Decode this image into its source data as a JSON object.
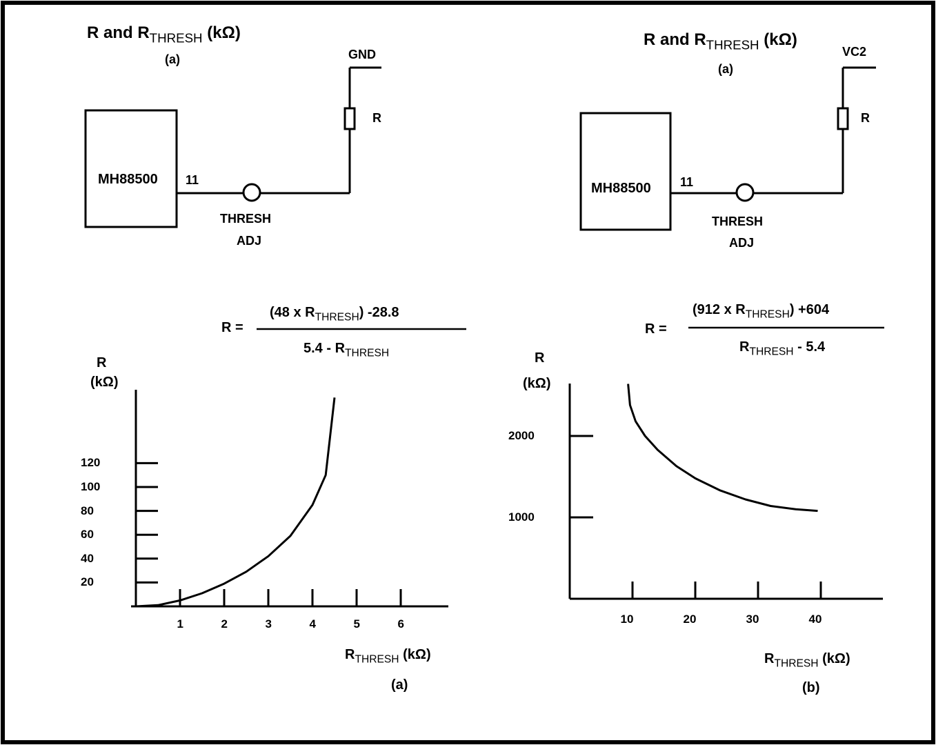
{
  "left": {
    "title": {
      "pre": "R and R",
      "sub": "THRESH",
      "post": "(kΩ)",
      "tag": "(a)"
    },
    "supply_label": "GND",
    "resistor_label": "R",
    "chip_label": "MH88500",
    "pin_label": "11",
    "pot_label_1": "THRESH",
    "pot_label_2": "ADJ",
    "formula": {
      "lhs": "R =",
      "num_pre": "(48 x R",
      "num_sub": "THRESH",
      "num_post": ") -28.8",
      "den_pre": "5.4 - R",
      "den_sub": "THRESH"
    },
    "y_axis_label_1": "R",
    "y_axis_label_2": "(kΩ)",
    "x_axis_label": {
      "pre": "R",
      "sub": "THRESH",
      "post": "(kΩ)"
    },
    "caption": "(a)"
  },
  "right": {
    "title": {
      "pre": "R and R",
      "sub": "THRESH",
      "post": "(kΩ)",
      "tag": "(a)"
    },
    "supply_label": "VC2",
    "resistor_label": "R",
    "chip_label": "MH88500",
    "pin_label": "11",
    "pot_label_1": "THRESH",
    "pot_label_2": "ADJ",
    "formula": {
      "lhs": "R =",
      "num_pre": "(912 x R",
      "num_sub": "THRESH",
      "num_post": ") +604",
      "den_pre": "R",
      "den_sub": "THRESH",
      "den_post": "- 5.4"
    },
    "y_axis_label_1": "R",
    "y_axis_label_2": "(kΩ)",
    "x_axis_label": {
      "pre": "R",
      "sub": "THRESH",
      "post": "(kΩ)"
    },
    "caption": "(b)"
  },
  "chart_data": [
    {
      "type": "line",
      "xlabel": "RTHRESH (kΩ)",
      "ylabel": "R (kΩ)",
      "x_ticks": [
        "1",
        "2",
        "3",
        "4",
        "5",
        "6"
      ],
      "y_ticks": [
        "20",
        "40",
        "60",
        "80",
        "100",
        "120"
      ],
      "xlim": [
        0,
        7.4
      ],
      "ylim": [
        0,
        175
      ],
      "x": [
        0,
        0.5,
        1,
        1.5,
        2,
        2.5,
        3,
        3.5,
        4,
        4.3,
        4.5
      ],
      "y": [
        0,
        1,
        5,
        11,
        19,
        29,
        42,
        59,
        85,
        110,
        175
      ]
    },
    {
      "type": "line",
      "xlabel": "RTHRESH (kΩ)",
      "ylabel": "R (kΩ)",
      "x_ticks": [
        "10",
        "20",
        "30",
        "40"
      ],
      "y_ticks": [
        "1000",
        "2000"
      ],
      "xlim": [
        0,
        48
      ],
      "ylim": [
        0,
        2640
      ],
      "x": [
        9.3,
        9.6,
        10.5,
        12,
        14,
        17,
        20,
        24,
        28,
        32,
        36,
        39.5
      ],
      "y": [
        2640,
        2380,
        2180,
        2000,
        1830,
        1630,
        1480,
        1330,
        1220,
        1140,
        1100,
        1080
      ]
    }
  ]
}
